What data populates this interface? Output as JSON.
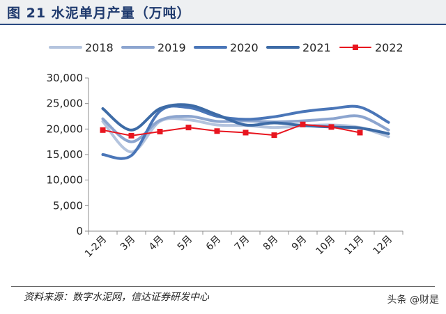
{
  "figure": {
    "title": "图 21 水泥单月产量（万吨）",
    "source": "资料来源：数字水泥网，信达证券研发中心",
    "watermark": "头条 @财是"
  },
  "chart_data": {
    "type": "line",
    "categories": [
      "1-2月",
      "3月",
      "4月",
      "5月",
      "6月",
      "7月",
      "8月",
      "9月",
      "10月",
      "11月",
      "12月"
    ],
    "ylim": [
      0,
      30000
    ],
    "yticks": [
      0,
      5000,
      10000,
      15000,
      20000,
      25000,
      30000
    ],
    "ytick_labels": [
      "0",
      "5,000",
      "10,000",
      "15,000",
      "20,000",
      "25,000",
      "30,000"
    ],
    "grid": false,
    "legend_position": "top",
    "series": [
      {
        "name": "2018",
        "color": "#b4c4de",
        "width": 4,
        "values": [
          21500,
          15500,
          21500,
          21800,
          20800,
          20700,
          20300,
          20600,
          20800,
          20300,
          18500
        ]
      },
      {
        "name": "2019",
        "color": "#8ca5cf",
        "width": 4,
        "values": [
          22000,
          17500,
          21700,
          22500,
          21500,
          21600,
          21400,
          21600,
          22000,
          22500,
          19800
        ]
      },
      {
        "name": "2020",
        "color": "#4a76b8",
        "width": 4,
        "values": [
          15000,
          14800,
          23500,
          24200,
          22500,
          21900,
          22400,
          23400,
          24000,
          24300,
          21300
        ]
      },
      {
        "name": "2021",
        "color": "#3d6ba6",
        "width": 4,
        "values": [
          24000,
          19800,
          24000,
          24700,
          22800,
          20800,
          21200,
          20700,
          20400,
          20200,
          19100
        ]
      },
      {
        "name": "2022",
        "color": "#e8151f",
        "width": 2,
        "marker": "square",
        "values": [
          19800,
          18700,
          19500,
          20300,
          19600,
          19300,
          18800,
          20900,
          20400,
          19300,
          null
        ]
      }
    ]
  }
}
